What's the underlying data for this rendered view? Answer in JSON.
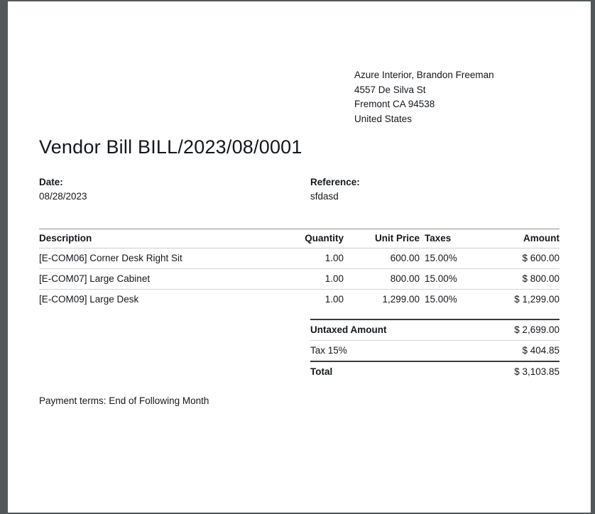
{
  "colors": {
    "frame_background": "#52575a",
    "page_background": "#ffffff",
    "text": "#14181d",
    "border_light": "#d6d6d6",
    "border_header_top": "#8f8f8f",
    "border_strong": "#3a3a3a"
  },
  "page": {
    "vendor_address": {
      "lines": [
        "Azure Interior, Brandon Freeman",
        "4557 De Silva St",
        "Fremont CA 94538",
        "United States"
      ]
    },
    "title": "Vendor Bill BILL/2023/08/0001",
    "info": {
      "date_label": "Date:",
      "date_value": "08/28/2023",
      "reference_label": "Reference:",
      "reference_value": "sfdasd"
    },
    "table": {
      "headers": [
        "Description",
        "Quantity",
        "Unit Price",
        "Taxes",
        "Amount"
      ],
      "rows": [
        {
          "description": "[E-COM06] Corner Desk Right Sit",
          "quantity": "1.00",
          "unit_price": "600.00",
          "taxes": "15.00%",
          "amount": "$ 600.00"
        },
        {
          "description": "[E-COM07] Large Cabinet",
          "quantity": "1.00",
          "unit_price": "800.00",
          "taxes": "15.00%",
          "amount": "$ 800.00"
        },
        {
          "description": "[E-COM09] Large Desk",
          "quantity": "1.00",
          "unit_price": "1,299.00",
          "taxes": "15.00%",
          "amount": "$ 1,299.00"
        }
      ]
    },
    "totals": [
      {
        "label": "Untaxed Amount",
        "value": "$ 2,699.00",
        "bold": true,
        "strong_border": true
      },
      {
        "label": "Tax 15%",
        "value": "$ 404.85",
        "bold": false,
        "strong_border": false
      },
      {
        "label": "Total",
        "value": "$ 3,103.85",
        "bold": true,
        "strong_border": true
      }
    ],
    "payment_terms": "Payment terms: End of Following Month"
  }
}
